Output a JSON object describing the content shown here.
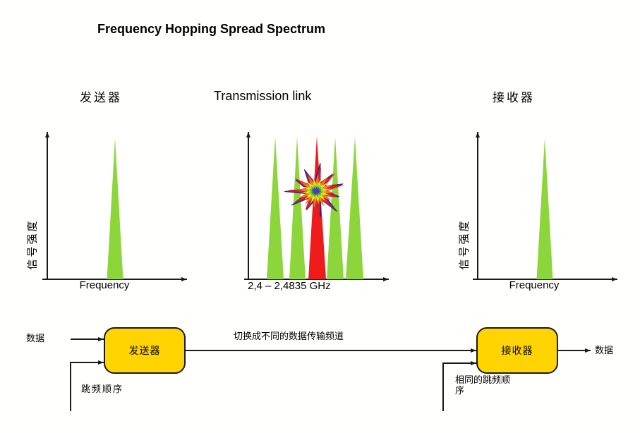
{
  "title": "Frequency Hopping Spread Spectrum",
  "header": {
    "transmitter": "发送器",
    "link": "Transmission link",
    "receiver": "接收器"
  },
  "plots": {
    "y_axis_label": "信号强度",
    "tx": {
      "x_axis_label": "Frequency",
      "channels": 1
    },
    "link": {
      "x_axis_label": "2,4 – 2,4835 GHz",
      "channels": 5,
      "jammed_channel_index": 2
    },
    "rx": {
      "x_axis_label": "Frequency",
      "channels": 1
    }
  },
  "diagram": {
    "data_in": "数据",
    "transmitter_box": "发送器",
    "receiver_box": "接收器",
    "channel_note": "切换成不同的数据传输频道",
    "hop_sequence": "跳频顺序",
    "same_hop_sequence": "相同的跳频顺序",
    "data_out": "数据"
  },
  "colors": {
    "signal_green": "#8CD63C",
    "jam_red": "#EE1B1B",
    "box_yellow": "#FFD400",
    "axis_black": "#1a1a1a",
    "starburst": [
      "#7B2A84",
      "#D6202C",
      "#EE7818",
      "#F2E428",
      "#AAD428",
      "#50B028",
      "#2840C8",
      "#7828C0"
    ]
  }
}
